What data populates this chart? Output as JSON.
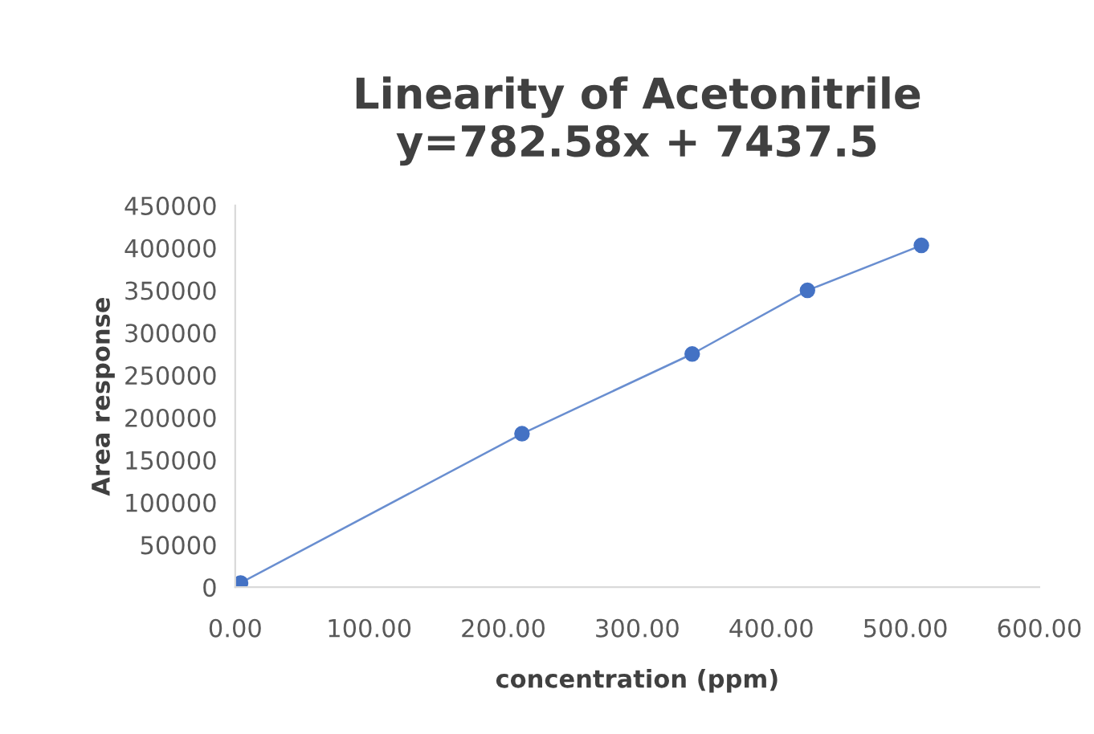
{
  "chart_data": {
    "type": "line",
    "title": "Linearity of Acetonitrile\ny=782.58x + 7437.5",
    "xlabel": "concentration (ppm)",
    "ylabel": "Area response",
    "x": [
      4,
      214,
      341,
      427,
      512
    ],
    "series": [
      {
        "color": "#4472c4",
        "values": [
          5000,
          181000,
          275000,
          350000,
          403000
        ]
      }
    ],
    "marker": "circle",
    "line_style": "solid",
    "grid": false,
    "xlim": [
      0,
      600
    ],
    "xticks": [
      {
        "value": 0,
        "label": "0.00"
      },
      {
        "value": 100,
        "label": "100.00"
      },
      {
        "value": 200,
        "label": "200.00"
      },
      {
        "value": 300,
        "label": "300.00"
      },
      {
        "value": 400,
        "label": "400.00"
      },
      {
        "value": 500,
        "label": "500.00"
      },
      {
        "value": 600,
        "label": "600.00"
      }
    ],
    "ylim": [
      0,
      450000
    ],
    "yticks": [
      0,
      50000,
      100000,
      150000,
      200000,
      250000,
      300000,
      350000,
      400000,
      450000
    ]
  }
}
